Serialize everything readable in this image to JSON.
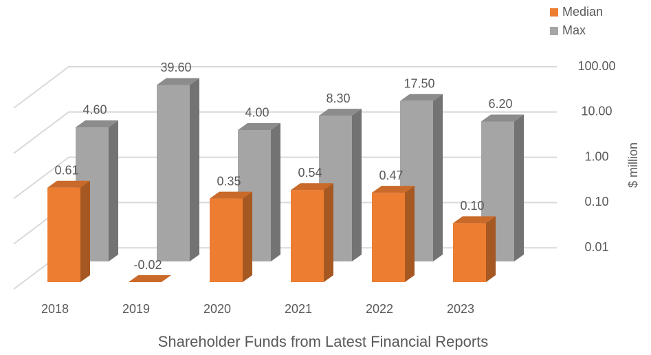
{
  "chart_data": {
    "type": "bar3d",
    "title": "Shareholder Funds from Latest Financial Reports",
    "y_label": "$ million",
    "categories": [
      "2018",
      "2019",
      "2020",
      "2021",
      "2022",
      "2023"
    ],
    "series": [
      {
        "name": "Median",
        "color": "#ed7d31",
        "values": [
          0.61,
          -0.02,
          0.35,
          0.54,
          0.47,
          0.1
        ],
        "value_labels": [
          "0.61",
          "-0.02",
          "0.35",
          "0.54",
          "0.47",
          "0.10"
        ]
      },
      {
        "name": "Max",
        "color": "#a5a5a5",
        "values": [
          4.6,
          39.6,
          4.0,
          8.3,
          17.5,
          6.2
        ],
        "value_labels": [
          "4.60",
          "39.60",
          "4.00",
          "8.30",
          "17.50",
          "6.20"
        ]
      }
    ],
    "log_scale": true,
    "ylim": [
      0.005,
      100
    ],
    "yticks": [
      {
        "value": 0.01,
        "label": "0.01"
      },
      {
        "value": 0.1,
        "label": "0.10"
      },
      {
        "value": 1,
        "label": "1.00"
      },
      {
        "value": 10,
        "label": "10.00"
      },
      {
        "value": 100,
        "label": "100.00"
      }
    ],
    "grid": true,
    "legend": "top-right"
  }
}
